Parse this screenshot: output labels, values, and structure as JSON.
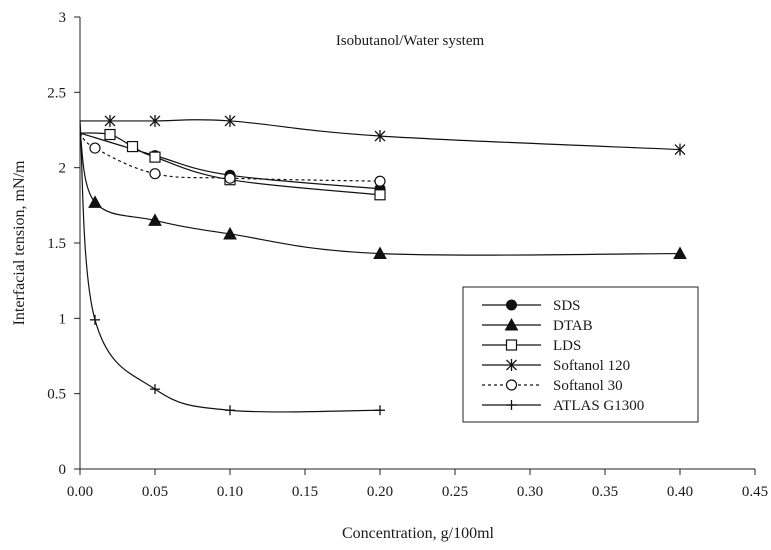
{
  "chart_data": {
    "type": "line",
    "title": "Isobutanol/Water system",
    "xlabel": "Concentration, g/100ml",
    "ylabel": "Interfacial  tension,  mN/m",
    "xlim": [
      0,
      0.45
    ],
    "ylim": [
      0,
      3
    ],
    "xticks": [
      "0.00",
      "0.05",
      "0.10",
      "0.15",
      "0.20",
      "0.25",
      "0.30",
      "0.35",
      "0.40",
      "0.45"
    ],
    "yticks": [
      "0",
      "0.5",
      "1",
      "1.5",
      "2",
      "2.5",
      "3"
    ],
    "legend_position": "bottom-right",
    "series": [
      {
        "name": "SDS",
        "marker": "filled-circle",
        "line": "solid",
        "x": [
          0,
          0.05,
          0.1,
          0.2
        ],
        "y": [
          2.23,
          2.08,
          1.95,
          1.86
        ]
      },
      {
        "name": "DTAB",
        "marker": "filled-triangle",
        "line": "solid",
        "x": [
          0,
          0.01,
          0.05,
          0.1,
          0.2,
          0.4
        ],
        "y": [
          2.23,
          1.77,
          1.65,
          1.56,
          1.43,
          1.43
        ]
      },
      {
        "name": "LDS",
        "marker": "open-square",
        "line": "solid",
        "x": [
          0,
          0.02,
          0.035,
          0.05,
          0.1,
          0.2
        ],
        "y": [
          2.23,
          2.22,
          2.14,
          2.07,
          1.92,
          1.82
        ]
      },
      {
        "name": "Softanol 120",
        "marker": "asterisk",
        "line": "solid",
        "x": [
          0,
          0.02,
          0.05,
          0.1,
          0.2,
          0.4
        ],
        "y": [
          2.31,
          2.31,
          2.31,
          2.31,
          2.21,
          2.12
        ]
      },
      {
        "name": "Softanol 30",
        "marker": "open-circle",
        "line": "dotted",
        "x": [
          0,
          0.01,
          0.05,
          0.1,
          0.2
        ],
        "y": [
          2.23,
          2.13,
          1.96,
          1.93,
          1.91
        ]
      },
      {
        "name": "ATLAS G1300",
        "marker": "plus",
        "line": "solid",
        "x": [
          0,
          0.01,
          0.05,
          0.1,
          0.2
        ],
        "y": [
          2.31,
          0.99,
          0.53,
          0.39,
          0.39
        ]
      }
    ]
  }
}
